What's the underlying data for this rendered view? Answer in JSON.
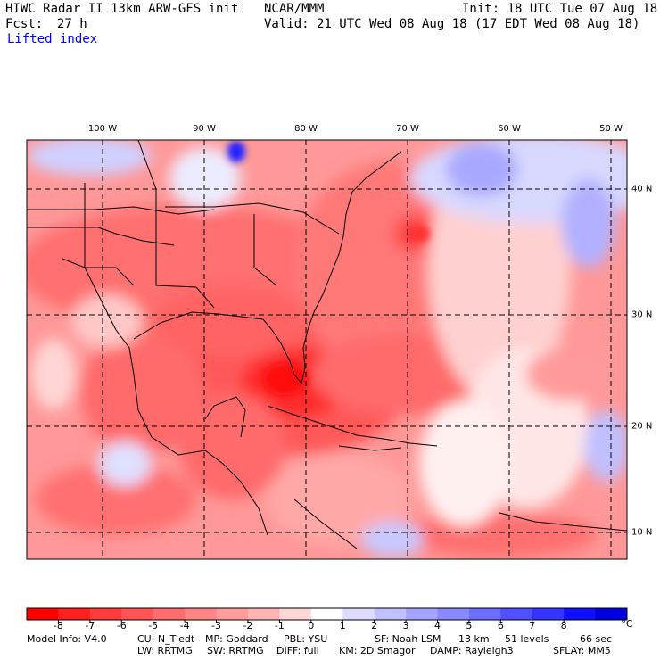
{
  "header": {
    "model_title": "HIWC Radar II 13km ARW-GFS init",
    "center": "NCAR/MMM",
    "init": "Init: 18 UTC Tue 07 Aug 18",
    "forecast_label": "Fcst:",
    "forecast_hours": "27 h",
    "valid": "Valid: 21 UTC Wed 08 Aug 18 (17 EDT Wed 08 Aug 18)",
    "field": "Lifted index"
  },
  "map": {
    "longitude_labels": [
      "100 W",
      "90 W",
      "80 W",
      "70 W",
      "60 W",
      "50 W"
    ],
    "latitude_labels": [
      "40 N",
      "30 N",
      "20 N",
      "10 N"
    ]
  },
  "colorbar": {
    "labels": [
      "-8",
      "-7",
      "-6",
      "-5",
      "-4",
      "-3",
      "-2",
      "-1",
      "0",
      "1",
      "2",
      "3",
      "4",
      "5",
      "6",
      "7",
      "8"
    ],
    "unit": "°C",
    "colors": [
      "#ff0000",
      "#ff2020",
      "#ff3c3c",
      "#ff5555",
      "#ff6c6c",
      "#ff8484",
      "#ff9c9c",
      "#ffb4b4",
      "#ffd6d6",
      "#ffffff",
      "#dcdcff",
      "#c0c0ff",
      "#a4a4ff",
      "#8888ff",
      "#6c6cff",
      "#5050ff",
      "#3434ff",
      "#1010ff",
      "#0000e0"
    ]
  },
  "footer": {
    "line1": [
      "Model Info: V4.0",
      "CU: N_Tiedt",
      "MP: Goddard",
      "PBL: YSU",
      "SF: Noah LSM",
      "13 km",
      "51 levels",
      "66 sec"
    ],
    "line2": [
      "LW: RRTMG",
      "SW: RRTMG",
      "DIFF: full",
      "KM: 2D Smagor",
      "DAMP: Rayleigh3",
      "SFLAY: MM5"
    ]
  }
}
